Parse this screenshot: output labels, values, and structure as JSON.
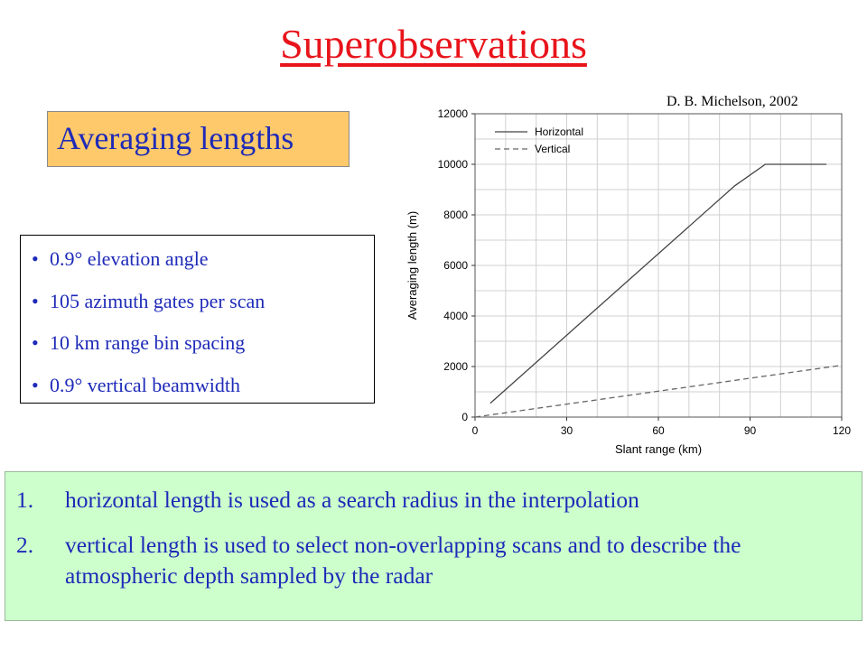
{
  "slide": {
    "title": "Superobservations",
    "citation": "D. B. Michelson, 2002",
    "section_label": "Averaging lengths",
    "bullet_symbol": "•",
    "bullets": [
      "0.9° elevation angle",
      "105 azimuth gates per scan",
      "10 km range bin spacing",
      "0.9° vertical beamwidth"
    ],
    "notes": [
      {
        "number": "1.",
        "text": "horizontal length is used as a search radius in the interpolation"
      },
      {
        "number": "2.",
        "text": "vertical length is used to select non-overlapping scans and to describe the atmospheric depth sampled by the radar"
      }
    ],
    "colors": {
      "title": "#e8141b",
      "body_text": "#1e2ab8",
      "label_box": "#fdc96a",
      "notes_box": "#ccffcc"
    }
  },
  "chart_data": {
    "type": "line",
    "xlabel": "Slant range (km)",
    "ylabel": "Averaging length (m)",
    "xlim": [
      0,
      120
    ],
    "ylim": [
      0,
      12000
    ],
    "xticks": [
      0,
      30,
      60,
      90,
      120
    ],
    "yticks": [
      0,
      2000,
      4000,
      6000,
      8000,
      10000,
      12000
    ],
    "grid": true,
    "legend_position": "top-left",
    "series": [
      {
        "name": "Horizontal",
        "style": "solid",
        "x": [
          5,
          85,
          95,
          115
        ],
        "y": [
          550,
          9150,
          10000,
          10000
        ]
      },
      {
        "name": "Vertical",
        "style": "dashed",
        "x": [
          0,
          120
        ],
        "y": [
          0,
          2050
        ]
      }
    ]
  }
}
